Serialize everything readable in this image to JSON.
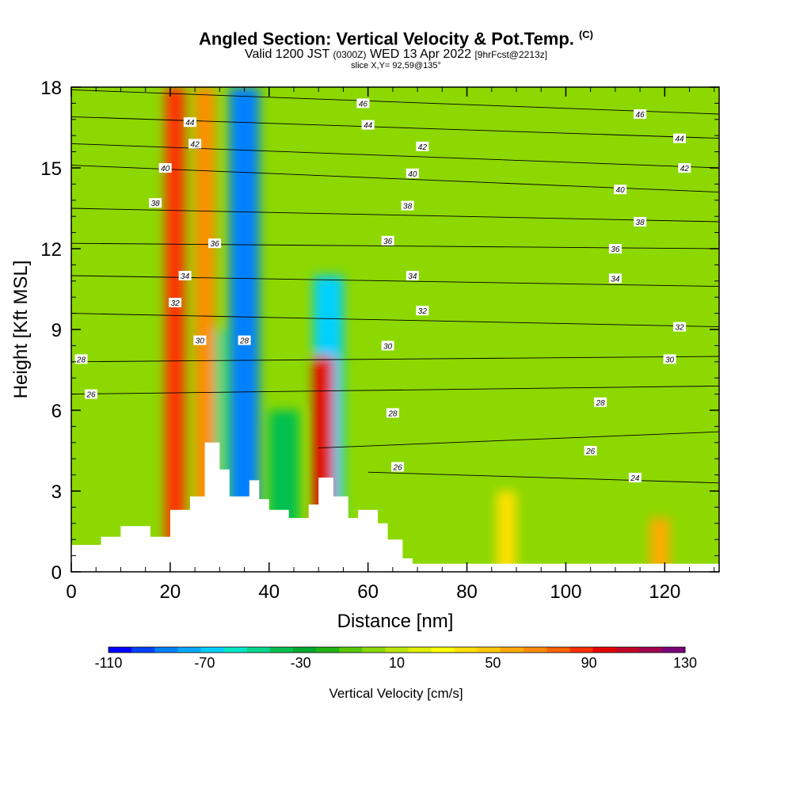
{
  "header": {
    "title": "Angled Section: Vertical Velocity & Pot.Temp.",
    "title_suffix": "(C)",
    "valid_prefix": "Valid 1200 JST",
    "valid_utc": "(0300Z)",
    "valid_date": "WED 13 Apr 2022",
    "forecast_info": "[9hrFcst@2213z]",
    "slice": "slice X,Y= 92,59@135°"
  },
  "chart_data": {
    "type": "heatmap",
    "xlabel": "Distance [nm]",
    "ylabel": "Height [Kft MSL]",
    "xlim": [
      0,
      131
    ],
    "ylim": [
      0,
      18
    ],
    "x_ticks": [
      0,
      20,
      40,
      60,
      80,
      100,
      120
    ],
    "y_ticks": [
      0,
      3,
      6,
      9,
      12,
      15,
      18
    ],
    "colorbar": {
      "label": "Vertical Velocity [cm/s]",
      "min": -110,
      "max": 130,
      "step": 10,
      "tick_labels": [
        "-110",
        "-70",
        "-30",
        "10",
        "50",
        "90",
        "130"
      ],
      "colors": [
        "#0000ff",
        "#0040ff",
        "#0080ff",
        "#00aaff",
        "#00d0ff",
        "#00e8c8",
        "#00d890",
        "#00c050",
        "#00a830",
        "#22b414",
        "#5ac800",
        "#8cd800",
        "#bce800",
        "#e0f000",
        "#ffff00",
        "#ffe000",
        "#ffc800",
        "#ffaa00",
        "#ff8c00",
        "#ff6400",
        "#ff3000",
        "#e60000",
        "#c40028",
        "#a00050",
        "#7a007a"
      ]
    },
    "updraft_cores": [
      {
        "x": 21,
        "z_top": 18,
        "max_w": 90
      },
      {
        "x": 27,
        "z_top": 18,
        "max_w": 70
      },
      {
        "x": 51,
        "z_top": 8,
        "max_w": 100
      },
      {
        "x": 88,
        "z_top": 3,
        "max_w": 40
      },
      {
        "x": 119,
        "z_top": 2,
        "max_w": 60
      }
    ],
    "downdraft_cores": [
      {
        "x": 35,
        "z_top": 18,
        "min_w": -90
      },
      {
        "x": 28,
        "z_top": 9,
        "min_w": -50
      },
      {
        "x": 52,
        "z_top": 11,
        "min_w": -70
      },
      {
        "x": 43,
        "z_top": 6,
        "min_w": -40
      }
    ],
    "isentropes": [
      {
        "theta": 24,
        "heights": [
          [
            60,
            3.7
          ],
          [
            131,
            3.3
          ]
        ]
      },
      {
        "theta": 26,
        "heights": [
          [
            50,
            4.6
          ],
          [
            131,
            5.2
          ]
        ]
      },
      {
        "theta": 28,
        "heights": [
          [
            0,
            6.6
          ],
          [
            131,
            6.9
          ]
        ]
      },
      {
        "theta": 30,
        "heights": [
          [
            0,
            7.8
          ],
          [
            131,
            8.0
          ]
        ]
      },
      {
        "theta": 32,
        "heights": [
          [
            0,
            9.6
          ],
          [
            131,
            9.1
          ]
        ]
      },
      {
        "theta": 34,
        "heights": [
          [
            0,
            11.0
          ],
          [
            131,
            10.6
          ]
        ]
      },
      {
        "theta": 36,
        "heights": [
          [
            0,
            12.2
          ],
          [
            131,
            12.0
          ]
        ]
      },
      {
        "theta": 38,
        "heights": [
          [
            0,
            13.5
          ],
          [
            131,
            13.0
          ]
        ]
      },
      {
        "theta": 40,
        "heights": [
          [
            0,
            15.1
          ],
          [
            131,
            14.1
          ]
        ]
      },
      {
        "theta": 42,
        "heights": [
          [
            0,
            15.9
          ],
          [
            131,
            15.0
          ]
        ]
      },
      {
        "theta": 44,
        "heights": [
          [
            0,
            16.9
          ],
          [
            131,
            16.1
          ]
        ]
      },
      {
        "theta": 46,
        "heights": [
          [
            0,
            17.9
          ],
          [
            131,
            17.0
          ]
        ]
      }
    ],
    "contour_labels": [
      {
        "text": "46",
        "x": 59,
        "z": 17.4
      },
      {
        "text": "46",
        "x": 115,
        "z": 17.0
      },
      {
        "text": "44",
        "x": 24,
        "z": 16.7
      },
      {
        "text": "44",
        "x": 60,
        "z": 16.6
      },
      {
        "text": "44",
        "x": 123,
        "z": 16.1
      },
      {
        "text": "42",
        "x": 25,
        "z": 15.9
      },
      {
        "text": "42",
        "x": 71,
        "z": 15.8
      },
      {
        "text": "42",
        "x": 124,
        "z": 15.0
      },
      {
        "text": "40",
        "x": 19,
        "z": 15.0
      },
      {
        "text": "40",
        "x": 69,
        "z": 14.8
      },
      {
        "text": "40",
        "x": 111,
        "z": 14.2
      },
      {
        "text": "38",
        "x": 17,
        "z": 13.7
      },
      {
        "text": "38",
        "x": 68,
        "z": 13.6
      },
      {
        "text": "38",
        "x": 115,
        "z": 13.0
      },
      {
        "text": "36",
        "x": 29,
        "z": 12.2
      },
      {
        "text": "36",
        "x": 64,
        "z": 12.3
      },
      {
        "text": "36",
        "x": 110,
        "z": 12.0
      },
      {
        "text": "34",
        "x": 23,
        "z": 11.0
      },
      {
        "text": "34",
        "x": 69,
        "z": 11.0
      },
      {
        "text": "34",
        "x": 110,
        "z": 10.9
      },
      {
        "text": "32",
        "x": 21,
        "z": 10.0
      },
      {
        "text": "32",
        "x": 71,
        "z": 9.7
      },
      {
        "text": "32",
        "x": 123,
        "z": 9.1
      },
      {
        "text": "30",
        "x": 26,
        "z": 8.6
      },
      {
        "text": "30",
        "x": 64,
        "z": 8.4
      },
      {
        "text": "30",
        "x": 121,
        "z": 7.9
      },
      {
        "text": "28",
        "x": 2,
        "z": 7.9
      },
      {
        "text": "28",
        "x": 35,
        "z": 8.6
      },
      {
        "text": "28",
        "x": 65,
        "z": 5.9
      },
      {
        "text": "28",
        "x": 107,
        "z": 6.3
      },
      {
        "text": "26",
        "x": 4,
        "z": 6.6
      },
      {
        "text": "26",
        "x": 66,
        "z": 3.9
      },
      {
        "text": "26",
        "x": 105,
        "z": 4.5
      },
      {
        "text": "24",
        "x": 114,
        "z": 3.5
      }
    ],
    "terrain": [
      [
        0,
        1
      ],
      [
        6,
        1
      ],
      [
        6,
        1.3
      ],
      [
        10,
        1.3
      ],
      [
        10,
        1.7
      ],
      [
        16,
        1.7
      ],
      [
        16,
        1.3
      ],
      [
        20,
        1.3
      ],
      [
        20,
        2.3
      ],
      [
        24,
        2.3
      ],
      [
        24,
        2.8
      ],
      [
        27,
        2.8
      ],
      [
        27,
        4.8
      ],
      [
        30,
        4.8
      ],
      [
        30,
        3.8
      ],
      [
        32,
        3.8
      ],
      [
        32,
        2.8
      ],
      [
        36,
        2.8
      ],
      [
        36,
        3.4
      ],
      [
        38,
        3.4
      ],
      [
        38,
        2.7
      ],
      [
        40,
        2.7
      ],
      [
        40,
        2.3
      ],
      [
        44,
        2.3
      ],
      [
        44,
        2.0
      ],
      [
        48,
        2.0
      ],
      [
        48,
        2.5
      ],
      [
        50,
        2.5
      ],
      [
        50,
        3.5
      ],
      [
        53,
        3.5
      ],
      [
        53,
        2.8
      ],
      [
        56,
        2.8
      ],
      [
        56,
        2.0
      ],
      [
        58,
        2.0
      ],
      [
        58,
        2.3
      ],
      [
        62,
        2.3
      ],
      [
        62,
        1.8
      ],
      [
        64,
        1.8
      ],
      [
        64,
        1.2
      ],
      [
        67,
        1.2
      ],
      [
        67,
        0.5
      ],
      [
        69,
        0.5
      ],
      [
        69,
        0.3
      ],
      [
        73,
        0.3
      ],
      [
        73,
        0.3
      ],
      [
        131,
        0.3
      ]
    ]
  }
}
